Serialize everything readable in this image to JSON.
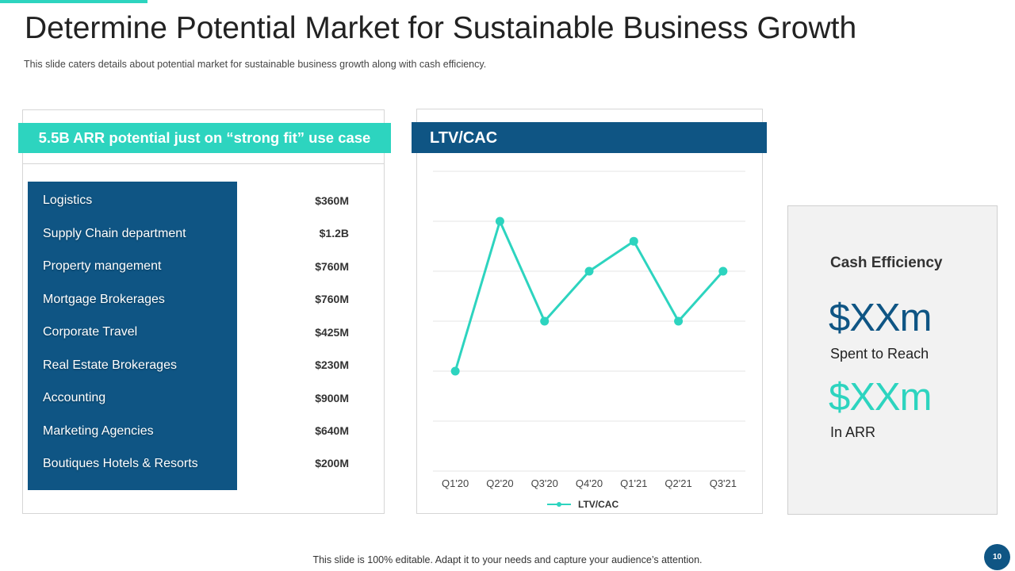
{
  "header": {
    "title": "Determine Potential Market for Sustainable Business Growth",
    "subtitle": "This slide caters details about potential market for sustainable business growth along with cash efficiency."
  },
  "market": {
    "banner": "5.5B ARR potential just on “strong fit” use case",
    "items": [
      {
        "label": "Logistics",
        "value": "$360M"
      },
      {
        "label": "Supply Chain department",
        "value": "$1.2B"
      },
      {
        "label": "Property mangement",
        "value": "$760M"
      },
      {
        "label": "Mortgage Brokerages",
        "value": "$760M"
      },
      {
        "label": "Corporate Travel",
        "value": "$425M"
      },
      {
        "label": "Real Estate Brokerages",
        "value": "$230M"
      },
      {
        "label": "Accounting",
        "value": "$900M"
      },
      {
        "label": "Marketing Agencies",
        "value": "$640M"
      },
      {
        "label": "Boutiques Hotels & Resorts",
        "value": "$200M"
      }
    ]
  },
  "chart_panel": {
    "banner": "LTV/CAC"
  },
  "chart_data": {
    "type": "line",
    "title": "LTV/CAC",
    "categories": [
      "Q1'20",
      "Q2'20",
      "Q3'20",
      "Q4'20",
      "Q1'21",
      "Q2'21",
      "Q3'21"
    ],
    "series": [
      {
        "name": "LTV/CAC",
        "values": [
          2,
          5,
          3,
          4,
          4.6,
          3,
          4
        ],
        "color": "#2dd4bf"
      }
    ],
    "ylim": [
      0,
      6
    ],
    "grid": true,
    "legend": "bottom",
    "xlabel": "",
    "ylabel": ""
  },
  "cash": {
    "title": "Cash Efficiency",
    "spent_value": "$XXm",
    "spent_label": "Spent to Reach",
    "arr_value": "$XXm",
    "arr_label": "In ARR"
  },
  "footer": {
    "note": "This slide is 100% editable. Adapt it to your needs and capture your audience’s attention.",
    "page_number": "10"
  },
  "colors": {
    "teal": "#2dd4bf",
    "navy": "#0f5584"
  }
}
